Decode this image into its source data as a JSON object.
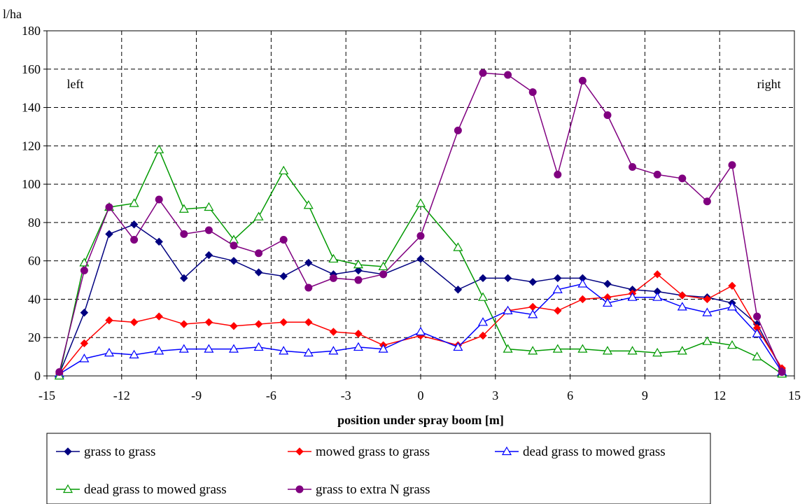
{
  "chart_data": {
    "type": "line",
    "title": "",
    "xlabel": "position under spray boom [m]",
    "ylabel": "l/ha",
    "xlim": [
      -15,
      15
    ],
    "ylim": [
      0,
      180
    ],
    "xticks": [
      -15,
      -12,
      -9,
      -6,
      -3,
      0,
      3,
      6,
      9,
      12,
      15
    ],
    "yticks": [
      0,
      20,
      40,
      60,
      80,
      100,
      120,
      140,
      160,
      180
    ],
    "grid": true,
    "legend_position": "bottom",
    "annotations": [
      {
        "text": "left",
        "x": -14.2,
        "y": 150
      },
      {
        "text": "right",
        "x": 13.5,
        "y": 150
      }
    ],
    "x": [
      -14.5,
      -13.5,
      -12.5,
      -11.5,
      -10.5,
      -9.5,
      -8.5,
      -7.5,
      -6.5,
      -5.5,
      -4.5,
      -3.5,
      -2.5,
      -1.5,
      0,
      1.5,
      2.5,
      3.5,
      4.5,
      5.5,
      6.5,
      7.5,
      8.5,
      9.5,
      10.5,
      11.5,
      12.5,
      13.5,
      14.5
    ],
    "series": [
      {
        "name": "grass to grass",
        "color": "#000080",
        "marker": "diamond",
        "filled": true,
        "values": [
          1,
          33,
          74,
          79,
          70,
          51,
          63,
          60,
          54,
          52,
          59,
          53,
          55,
          53,
          61,
          45,
          51,
          51,
          49,
          51,
          51,
          48,
          45,
          44,
          42,
          41,
          38,
          27,
          3
        ]
      },
      {
        "name": "mowed grass to grass",
        "color": "#ff0000",
        "marker": "diamond",
        "filled": true,
        "values": [
          1,
          17,
          29,
          28,
          31,
          27,
          28,
          26,
          27,
          28,
          28,
          23,
          22,
          16,
          21,
          16,
          21,
          34,
          36,
          34,
          40,
          41,
          43,
          53,
          42,
          40,
          47,
          25,
          4
        ]
      },
      {
        "name": "dead grass to mowed grass",
        "color": "#0000ff",
        "marker": "triangle",
        "filled": false,
        "values": [
          1,
          9,
          12,
          11,
          13,
          14,
          14,
          14,
          15,
          13,
          12,
          13,
          15,
          14,
          23,
          15,
          28,
          34,
          32,
          45,
          48,
          38,
          41,
          41,
          36,
          33,
          36,
          22,
          2
        ]
      },
      {
        "name": "dead grass to mowed grass",
        "color": "#009900",
        "marker": "triangle",
        "filled": false,
        "values": [
          0,
          59,
          88,
          90,
          118,
          87,
          88,
          71,
          83,
          107,
          89,
          61,
          58,
          57,
          90,
          67,
          41,
          14,
          13,
          14,
          14,
          13,
          13,
          12,
          13,
          18,
          16,
          10,
          1
        ]
      },
      {
        "name": "grass to extra N grass",
        "color": "#800080",
        "marker": "circle",
        "filled": true,
        "values": [
          2,
          55,
          88,
          71,
          92,
          74,
          76,
          68,
          64,
          71,
          46,
          51,
          50,
          53,
          73,
          128,
          158,
          157,
          148,
          105,
          154,
          136,
          109,
          105,
          103,
          91,
          110,
          31,
          2
        ]
      }
    ]
  }
}
